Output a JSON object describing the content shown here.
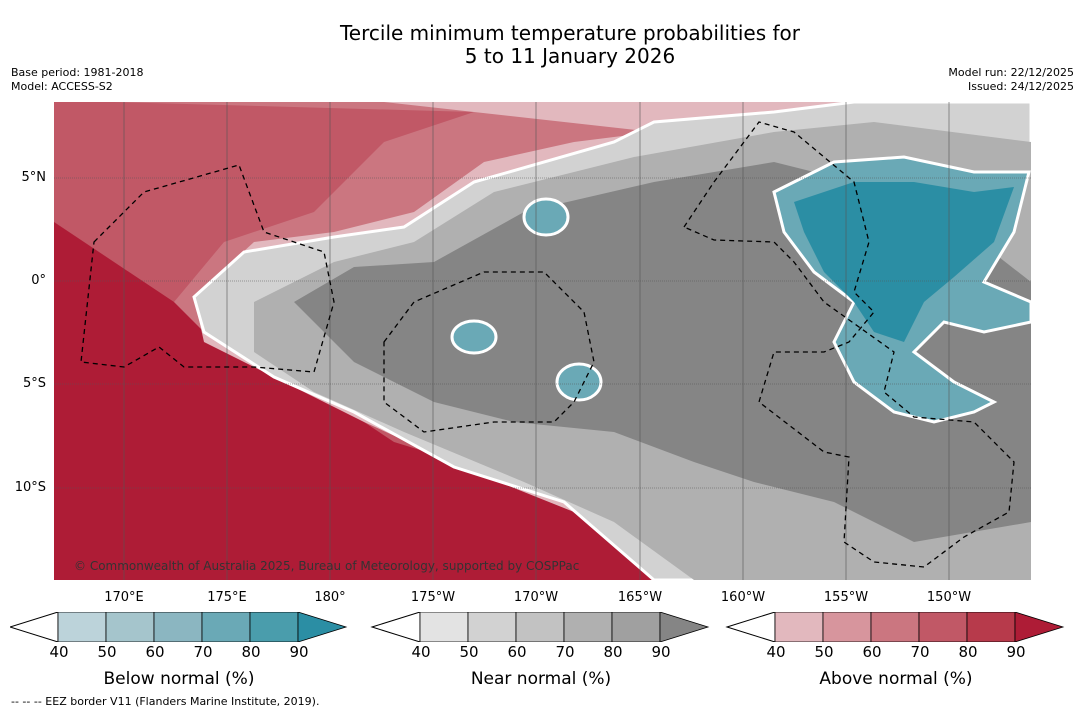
{
  "title": {
    "line1": "Tercile minimum temperature probabilities for",
    "line2": "5 to 11 January 2026"
  },
  "meta": {
    "base_period": "Base period: 1981-2018",
    "model": "Model: ACCESS-S2",
    "model_run": "Model run: 22/12/2025",
    "issued": "Issued: 24/12/2025"
  },
  "map": {
    "lat_labels": [
      "5°N",
      "0°",
      "5°S",
      "10°S"
    ],
    "lon_labels": [
      "170°E",
      "175°E",
      "180°",
      "175°W",
      "170°W",
      "165°W",
      "160°W",
      "155°W",
      "150°W"
    ],
    "copyright": "© Commonwealth of Australia 2025, Bureau of Meteorology, supported by COSPPac"
  },
  "colorbars": [
    {
      "label": "Below normal (%)",
      "ticks": [
        "40",
        "50",
        "60",
        "70",
        "80",
        "90"
      ],
      "colors": [
        "#bcd3da",
        "#a5c5cc",
        "#8bb6c1",
        "#6aa9b6",
        "#4a9dac",
        "#2b8ea4"
      ]
    },
    {
      "label": "Near normal (%)",
      "ticks": [
        "40",
        "50",
        "60",
        "70",
        "80",
        "90"
      ],
      "colors": [
        "#e3e3e3",
        "#d2d2d2",
        "#c2c2c2",
        "#b0b0b0",
        "#a0a0a0",
        "#858585"
      ]
    },
    {
      "label": "Above normal (%)",
      "ticks": [
        "40",
        "50",
        "60",
        "70",
        "80",
        "90"
      ],
      "colors": [
        "#e2b8be",
        "#d7959d",
        "#cb7680",
        "#c15866",
        "#b73a4b",
        "#ae1c36"
      ]
    }
  ],
  "footnote": "--  --  -- EEZ border V11 (Flanders Marine Institute, 2019)."
}
